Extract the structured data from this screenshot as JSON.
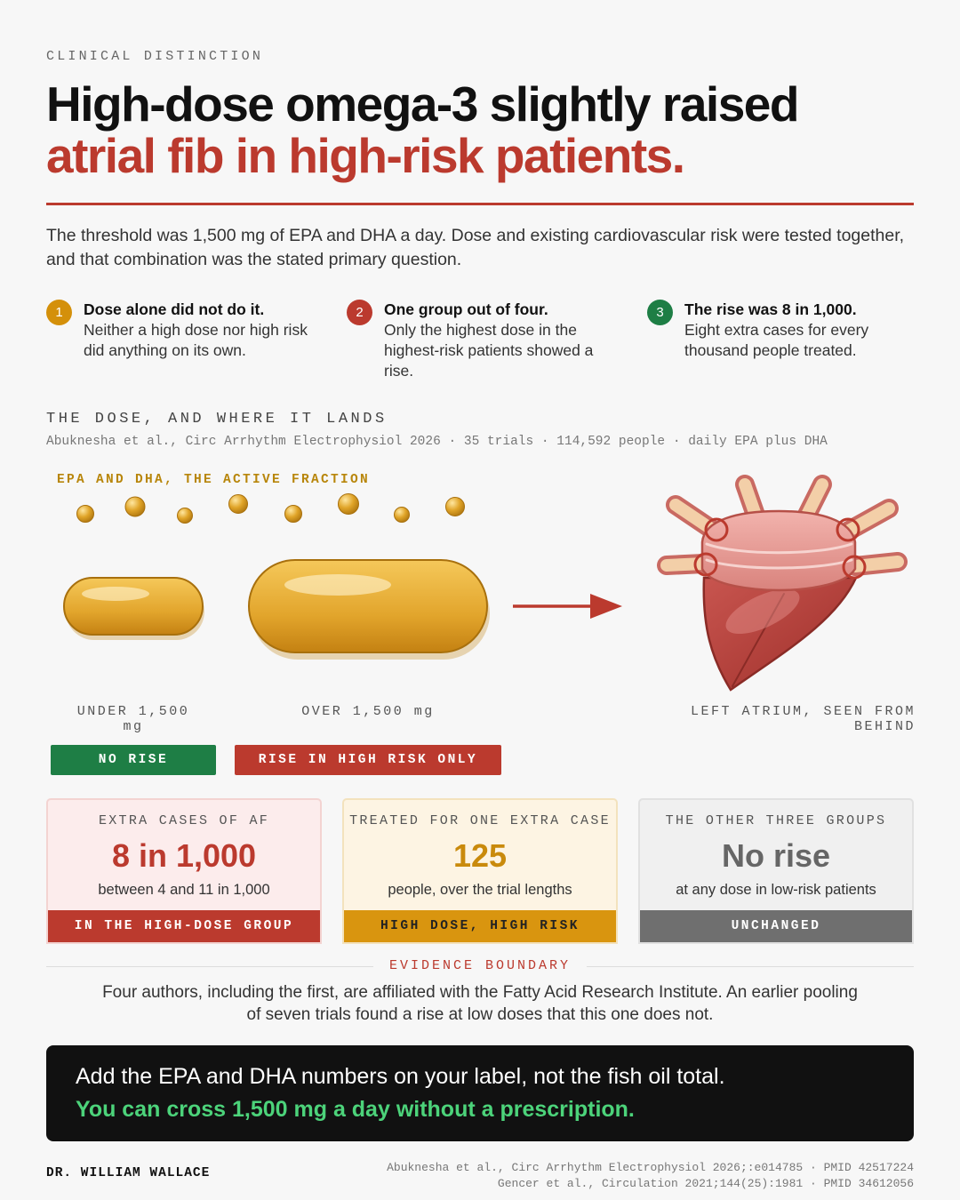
{
  "header": {
    "kicker": "CLINICAL DISTINCTION",
    "title_line1": "High-dose omega-3 slightly raised",
    "title_line2": "atrial fib in high-risk patients.",
    "intro": "The threshold was 1,500 mg of EPA and DHA a day. Dose and existing cardiovascular risk were tested together, and that combination was the stated primary question."
  },
  "points": [
    {
      "number": 1,
      "title": "Dose alone did not do it.",
      "text": "Neither a high dose nor high risk did anything on its own."
    },
    {
      "number": 2,
      "title": "One group out of four.",
      "text": "Only the highest dose in the highest-risk patients showed a rise."
    },
    {
      "number": 3,
      "title": "The rise was 8 in 1,000.",
      "text": "Eight extra cases for every thousand people treated."
    }
  ],
  "section": {
    "title": "THE DOSE, AND WHERE IT LANDS",
    "source": "Abuknesha et al., Circ Arrhythm Electrophysiol 2026 · 35 trials · 114,592 people · daily EPA plus DHA"
  },
  "illustration": {
    "fraction_label": "EPA AND DHA, THE ACTIVE FRACTION",
    "low_label": "UNDER 1,500 mg",
    "high_label": "OVER 1,500 mg",
    "heart_label": "LEFT ATRIUM, SEEN FROM BEHIND",
    "badges": [
      "NO RISE",
      "RISE IN HIGH RISK ONLY"
    ]
  },
  "stats": [
    {
      "label": "EXTRA CASES OF AF",
      "value": "8 in 1,000",
      "sub": "between 4 and 11 in 1,000",
      "footer": "IN THE HIGH-DOSE GROUP"
    },
    {
      "label": "TREATED FOR ONE EXTRA CASE",
      "value": "125",
      "sub": "people, over the trial lengths",
      "footer": "HIGH DOSE, HIGH RISK"
    },
    {
      "label": "THE OTHER THREE GROUPS",
      "value": "No rise",
      "sub": "at any dose in low-risk patients",
      "footer": "UNCHANGED"
    }
  ],
  "evidence": {
    "title": "EVIDENCE BOUNDARY",
    "text": "Four authors, including the first, are affiliated with the Fatty Acid Research Institute. An earlier pooling of seven trials found a rise at low doses that this one does not."
  },
  "callout": {
    "line1": "Add the EPA and DHA numbers on your label, not the fish oil total.",
    "line2": "You can cross 1,500 mg a day without a prescription."
  },
  "footer": {
    "author": "DR. WILLIAM WALLACE",
    "references": [
      "Abuknesha et al., Circ Arrhythm Electrophysiol 2026;:e014785 · PMID 42517224",
      "Gencer et al., Circulation 2021;144(25):1981 · PMID 34612056"
    ]
  }
}
